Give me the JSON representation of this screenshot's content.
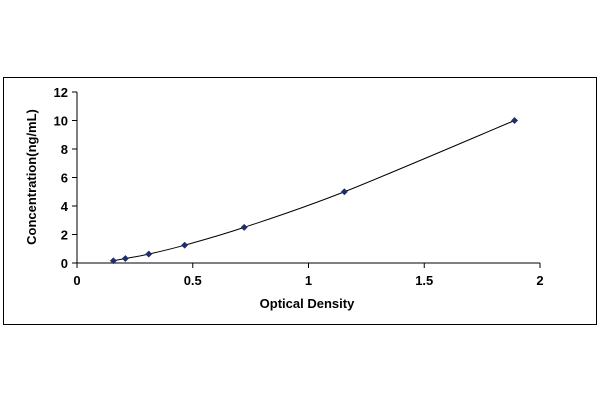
{
  "chart_data": {
    "type": "scatter",
    "title": "",
    "xlabel": "Optical Density",
    "ylabel": "Concentration(ng/mL)",
    "xlim": [
      0,
      2
    ],
    "ylim": [
      0,
      12
    ],
    "xticks": [
      "0",
      "0.5",
      "1",
      "1.5",
      "2"
    ],
    "yticks": [
      "0",
      "2",
      "4",
      "6",
      "8",
      "10",
      "12"
    ],
    "grid": false,
    "legend": "none",
    "trendline": "smooth curve through points",
    "marker": "diamond",
    "color": "#1f2d6b",
    "series": [
      {
        "x": [
          0.157,
          0.209,
          0.31,
          0.465,
          0.722,
          1.155,
          1.89
        ],
        "y": [
          0.156,
          0.313,
          0.625,
          1.25,
          2.5,
          5,
          10
        ]
      }
    ]
  }
}
